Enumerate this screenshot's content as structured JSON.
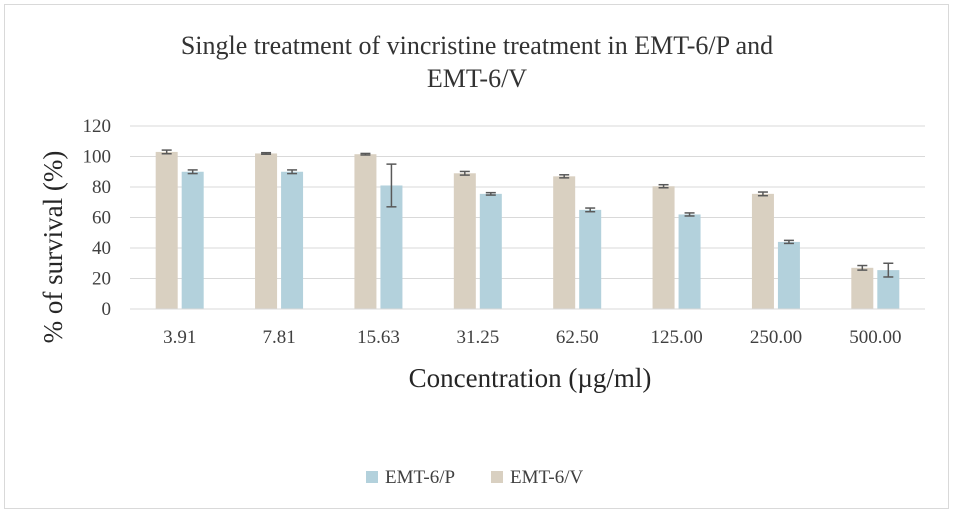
{
  "chart_data": {
    "type": "bar",
    "title_lines": [
      "Single treatment of vincristine treatment in EMT-6/P and",
      "EMT-6/V"
    ],
    "xlabel": "Concentration (µg/ml)",
    "ylabel": "% of survival (%)",
    "categories": [
      "3.91",
      "7.81",
      "15.63",
      "31.25",
      "62.50",
      "125.00",
      "250.00",
      "500.00"
    ],
    "ylim": [
      0,
      120
    ],
    "yticks": [
      "0",
      "20",
      "40",
      "60",
      "80",
      "100",
      "120"
    ],
    "grid": true,
    "legend_position": "bottom",
    "series": [
      {
        "name": "EMT-6/V",
        "color": "#d9d0c1",
        "values": [
          103,
          102,
          101.5,
          89,
          87,
          80.5,
          75.5,
          27
        ],
        "errors": [
          1.2,
          0.5,
          0.5,
          1.2,
          1.0,
          1.0,
          1.2,
          1.5
        ]
      },
      {
        "name": "EMT-6/P",
        "color": "#b3d1dc",
        "values": [
          90,
          90,
          81,
          75.5,
          65,
          62,
          44,
          25.5
        ],
        "errors": [
          1.2,
          1.2,
          14,
          0.8,
          1.2,
          1.0,
          1.0,
          4.5
        ]
      }
    ],
    "legend_order": [
      "EMT-6/P",
      "EMT-6/V"
    ],
    "error_bar_color": "#595959"
  }
}
